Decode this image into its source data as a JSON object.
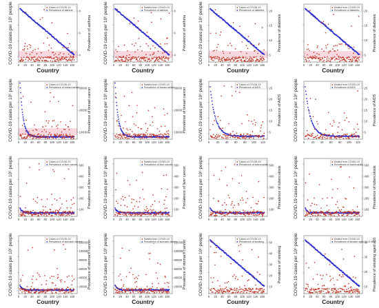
{
  "figure": {
    "x_axis_label": "Country",
    "left_axis_label": "COVID-19 cases per 10⁶ people",
    "colors": {
      "covid": "#c0392b",
      "prevalence": "#2c2ccc",
      "band": "#f4b6c2"
    }
  },
  "chart_data": [
    {
      "type": "scatter",
      "id": "p1",
      "title": "",
      "xlabel": "Country",
      "ylabel": "COVID-19 cases per 10⁶ people",
      "y2label": "Prevalence of asthma",
      "legend": [
        "Cases of COVID-19",
        "Prevalence of asthma"
      ],
      "xticks": [
        0,
        20,
        40,
        60,
        80,
        100,
        120,
        140,
        160
      ],
      "xlim": [
        0,
        175
      ],
      "y2ticks": [
        "4",
        "6",
        "8"
      ],
      "series": [
        {
          "values": [
            9,
            7,
            5,
            3
          ]
        }
      ]
    },
    {
      "type": "scatter",
      "id": "p2",
      "title": "",
      "xlabel": "Country",
      "ylabel": "COVID-19 cases per 10⁶ people",
      "y2label": "Prevalence of asthma",
      "legend": [
        "Deaths from COVID-19",
        "Prevalence of asthma"
      ],
      "xticks": [
        0,
        20,
        40,
        60,
        80,
        100,
        120,
        140,
        160
      ],
      "xlim": [
        0,
        175
      ],
      "y2ticks": [
        "4",
        "6",
        "8"
      ],
      "series": [
        {
          "values": [
            9,
            7,
            5,
            3
          ]
        }
      ]
    },
    {
      "type": "scatter",
      "id": "p3",
      "title": "",
      "xlabel": "Country",
      "ylabel": "COVID-19 cases per 10⁶ people",
      "y2label": "Prevalence of diabetes",
      "legend": [
        "Cases of COVID-19",
        "Prevalence of diabetes"
      ],
      "xticks": [
        0,
        20,
        40,
        60,
        80,
        100,
        120,
        140,
        160
      ],
      "xlim": [
        0,
        175
      ],
      "y2ticks": [
        "5",
        "10",
        "15",
        "20"
      ],
      "series": [
        {
          "values": [
            9,
            7,
            5,
            3
          ]
        }
      ]
    },
    {
      "type": "scatter",
      "id": "p4",
      "title": "",
      "xlabel": "Country",
      "ylabel": "",
      "y2label": "Prevalence of diabetes",
      "legend": [
        "Deaths from COVID-19",
        "Prevalence of diabetes"
      ],
      "xticks": [
        0,
        20,
        40,
        60,
        80,
        100,
        120,
        140,
        160
      ],
      "xlim": [
        0,
        175
      ],
      "y2ticks": [
        "5",
        "10",
        "15",
        "20"
      ],
      "series": [
        {
          "values": [
            9,
            7,
            5,
            3
          ]
        }
      ]
    },
    {
      "type": "scatter",
      "id": "p5",
      "title": "",
      "xlabel": "",
      "ylabel": "COVID-19 cases per 10⁶ people",
      "y2label": "Prevalence of breast cancer",
      "legend": [
        "Cases of COVID-19",
        "Prevalence of breast cancer"
      ],
      "xticks": [
        0,
        20,
        40,
        60,
        80,
        100,
        120,
        140,
        160
      ],
      "xlim": [
        0,
        175
      ],
      "y2ticks": [
        "10000",
        "20000",
        "30000"
      ],
      "series": [
        {
          "values": [
            9,
            7,
            5,
            3
          ]
        }
      ]
    },
    {
      "type": "scatter",
      "id": "p6",
      "title": "",
      "xlabel": "",
      "ylabel": "COVID-19 cases per 10⁶ people",
      "y2label": "Prevalence of breast cancer",
      "legend": [
        "Deaths from COVID-19",
        "Prevalence of breast cancer"
      ],
      "xticks": [
        0,
        20,
        40,
        60,
        80,
        100,
        120,
        140,
        160
      ],
      "xlim": [
        0,
        175
      ],
      "y2ticks": [
        "10000",
        "20000",
        "30000"
      ],
      "series": [
        {
          "values": [
            9,
            7,
            5,
            3
          ]
        }
      ]
    },
    {
      "type": "scatter",
      "id": "p7",
      "title": "",
      "xlabel": "",
      "ylabel": "COVID-19 cases per 10⁶ people",
      "y2label": "Prevalence of AIDS",
      "legend": [
        "Cases of COVID-19",
        "Prevalence of AIDS"
      ],
      "xticks": [
        0,
        20,
        40,
        60,
        80,
        100,
        120
      ],
      "xlim": [
        0,
        130
      ],
      "y2ticks": [
        "5",
        "10",
        "15",
        "20",
        "25"
      ],
      "series": [
        {
          "values": [
            9,
            7,
            5,
            3
          ]
        }
      ]
    },
    {
      "type": "scatter",
      "id": "p8",
      "title": "",
      "xlabel": "",
      "ylabel": "COVID-19 cases per 10⁶ people",
      "y2label": "Prevalence of AIDS",
      "legend": [
        "Deaths from COVID-19",
        "Prevalence of AIDS"
      ],
      "xticks": [
        0,
        20,
        40,
        60,
        80,
        100,
        120
      ],
      "xlim": [
        0,
        130
      ],
      "y2ticks": [
        "5",
        "10",
        "15",
        "20",
        "25"
      ],
      "series": [
        {
          "values": [
            9,
            7,
            5,
            3
          ]
        }
      ]
    },
    {
      "type": "scatter",
      "id": "p9",
      "title": "",
      "xlabel": "",
      "ylabel": "COVID-19 cases per 10⁶ people",
      "y2label": "Prevalence of liver cancer",
      "legend": [
        "Cases of COVID-19",
        "Prevalence of liver cancer"
      ],
      "xticks": [
        0,
        20,
        40,
        60,
        80,
        100,
        120,
        140,
        160
      ],
      "xlim": [
        0,
        175
      ],
      "y2ticks": [
        "100",
        "200",
        "300",
        "400",
        "500"
      ],
      "series": [
        {
          "values": [
            9,
            7,
            5,
            3
          ]
        }
      ]
    },
    {
      "type": "scatter",
      "id": "p10",
      "title": "",
      "xlabel": "",
      "ylabel": "COVID-19 cases per 10⁶ people",
      "y2label": "Prevalence of liver cancer",
      "legend": [
        "Deaths from COVID-19",
        "Prevalence of liver cancer"
      ],
      "xticks": [
        0,
        20,
        40,
        60,
        80,
        100,
        120,
        140,
        160
      ],
      "xlim": [
        0,
        175
      ],
      "y2ticks": [
        "100",
        "200",
        "300",
        "400",
        "500"
      ],
      "series": [
        {
          "values": [
            9,
            7,
            5,
            3
          ]
        }
      ]
    },
    {
      "type": "scatter",
      "id": "p11",
      "title": "",
      "xlabel": "",
      "ylabel": "COVID-19 cases per 10⁶ people",
      "y2label": "Prevalence of tuberculosis",
      "legend": [
        "Cases of COVID-19",
        "Prevalence of tuberculosis"
      ],
      "xticks": [
        0,
        20,
        40,
        60,
        80,
        100,
        120,
        140,
        160
      ],
      "xlim": [
        0,
        175
      ],
      "y2ticks": [
        "100",
        "200",
        "300",
        "400",
        "500"
      ],
      "series": [
        {
          "values": [
            9,
            7,
            5,
            3
          ]
        }
      ]
    },
    {
      "type": "scatter",
      "id": "p12",
      "title": "",
      "xlabel": "",
      "ylabel": "COVID-19 cases per 10⁶ people",
      "y2label": "Prevalence of tuberculosis",
      "legend": [
        "Deaths from COVID-19",
        "Prevalence of tuberculosis"
      ],
      "xticks": [
        0,
        20,
        40,
        60,
        80,
        100,
        120,
        140,
        160
      ],
      "xlim": [
        0,
        175
      ],
      "y2ticks": [
        "100",
        "200",
        "300",
        "400",
        "500"
      ],
      "series": [
        {
          "values": [
            9,
            7,
            5,
            3
          ]
        }
      ]
    },
    {
      "type": "scatter",
      "id": "p13",
      "title": "",
      "xlabel": "Country",
      "ylabel": "COVID-19 cases per 10⁶ people",
      "y2label": "Prevalence of stomach cancer",
      "legend": [
        "Cases of COVID-19",
        "Prevalence of stomach cancer"
      ],
      "xticks": [
        0,
        20,
        40,
        60,
        80,
        100,
        120,
        140,
        160
      ],
      "xlim": [
        0,
        175
      ],
      "y2ticks": [
        "20000",
        "40000",
        "60000",
        "80000",
        "100000",
        "120000"
      ],
      "series": [
        {
          "values": [
            9,
            7,
            5,
            3
          ]
        }
      ]
    },
    {
      "type": "scatter",
      "id": "p14",
      "title": "",
      "xlabel": "Country",
      "ylabel": "COVID-19 cases per 10⁶ people",
      "y2label": "Prevalence of stomach cancer",
      "legend": [
        "Deaths from COVID-19",
        "Prevalence of stomach cancer"
      ],
      "xticks": [
        0,
        20,
        40,
        60,
        80,
        100,
        120,
        140,
        160
      ],
      "xlim": [
        0,
        175
      ],
      "y2ticks": [
        "20000",
        "40000",
        "60000",
        "80000",
        "100000",
        "120000"
      ],
      "series": [
        {
          "values": [
            9,
            7,
            5,
            3
          ]
        }
      ]
    },
    {
      "type": "scatter",
      "id": "p15",
      "title": "",
      "xlabel": "Country",
      "ylabel": "COVID-19 cases per 10⁶ people",
      "y2label": "Prevalence of smoking",
      "legend": [
        "Cases of COVID-19",
        "Prevalence of smoking"
      ],
      "xticks": [
        0,
        20,
        40,
        60,
        80,
        100,
        120,
        140,
        160
      ],
      "xlim": [
        0,
        175
      ],
      "y2ticks": [
        "10",
        "20",
        "30",
        "40",
        "50"
      ],
      "series": [
        {
          "values": [
            9,
            7,
            5,
            3
          ]
        }
      ]
    },
    {
      "type": "scatter",
      "id": "p16",
      "title": "",
      "xlabel": "Country",
      "ylabel": "COVID-19 cases per 10⁶ people",
      "y2label": "Prevalence of smoking aged ≥10",
      "legend": [
        "Deaths from COVID-19",
        "Prevalence of smoker aged 10 & older"
      ],
      "xticks": [
        0,
        20,
        40,
        60,
        80,
        100,
        120,
        140,
        160
      ],
      "xlim": [
        0,
        175
      ],
      "y2ticks": [
        "10",
        "20",
        "30",
        "40"
      ],
      "series": [
        {
          "values": [
            9,
            7,
            5,
            3
          ]
        }
      ]
    }
  ]
}
